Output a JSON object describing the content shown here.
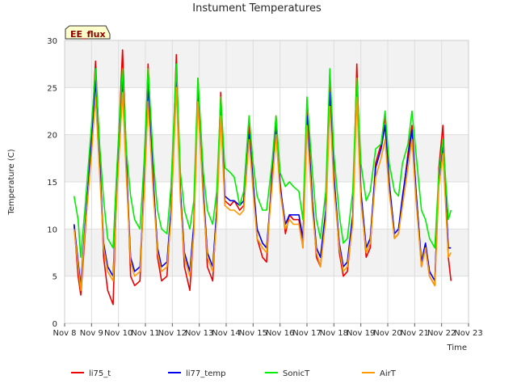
{
  "chart_data": {
    "type": "line",
    "title": "Instument Temperatures",
    "xlabel": "Time",
    "ylabel": "Temperature (C)",
    "badge": "EE_flux",
    "ylim": [
      0,
      30
    ],
    "yticks": [
      0,
      5,
      10,
      15,
      20,
      25,
      30
    ],
    "xlim": [
      8,
      23
    ],
    "xticks": [
      {
        "x": 8,
        "label": "Nov 8"
      },
      {
        "x": 9,
        "label": "Nov 9"
      },
      {
        "x": 10,
        "label": "Nov 10"
      },
      {
        "x": 11,
        "label": "Nov 11"
      },
      {
        "x": 12,
        "label": "Nov 12"
      },
      {
        "x": 13,
        "label": "Nov 13"
      },
      {
        "x": 14,
        "label": "Nov 14"
      },
      {
        "x": 15,
        "label": "Nov 15"
      },
      {
        "x": 16,
        "label": "Nov 16"
      },
      {
        "x": 17,
        "label": "Nov 17"
      },
      {
        "x": 18,
        "label": "Nov 18"
      },
      {
        "x": 19,
        "label": "Nov 19"
      },
      {
        "x": 20,
        "label": "Nov 20"
      },
      {
        "x": 21,
        "label": "Nov 21"
      },
      {
        "x": 22,
        "label": "Nov 22"
      },
      {
        "x": 23,
        "label": "Nov 23"
      }
    ],
    "grid": true,
    "legend_position": "bottom",
    "series": [
      {
        "name": "li75_t",
        "color": "#ee0000",
        "x": [
          8.35,
          8.5,
          8.6,
          8.75,
          9.0,
          9.15,
          9.3,
          9.45,
          9.6,
          9.8,
          9.95,
          10.15,
          10.3,
          10.45,
          10.6,
          10.8,
          10.95,
          11.1,
          11.3,
          11.45,
          11.6,
          11.8,
          11.95,
          12.15,
          12.3,
          12.45,
          12.65,
          12.8,
          12.95,
          13.15,
          13.3,
          13.5,
          13.65,
          13.8,
          13.95,
          14.15,
          14.3,
          14.5,
          14.65,
          14.85,
          15.0,
          15.15,
          15.35,
          15.5,
          15.7,
          15.85,
          16.0,
          16.2,
          16.35,
          16.5,
          16.7,
          16.85,
          17.0,
          17.2,
          17.35,
          17.5,
          17.7,
          17.85,
          18.0,
          18.2,
          18.35,
          18.5,
          18.7,
          18.85,
          19.0,
          19.2,
          19.35,
          19.55,
          19.75,
          19.9,
          20.05,
          20.25,
          20.4,
          20.55,
          20.75,
          20.9,
          21.05,
          21.25,
          21.4,
          21.55,
          21.75,
          21.9,
          22.05,
          22.25,
          22.35
        ],
        "y": [
          10.5,
          5.0,
          3.0,
          9.0,
          20.0,
          27.8,
          18.0,
          7.0,
          3.5,
          2.0,
          16.0,
          29.0,
          17.0,
          5.0,
          4.0,
          4.5,
          15.0,
          27.5,
          15.0,
          7.0,
          4.5,
          5.0,
          12.0,
          28.5,
          14.0,
          6.0,
          3.5,
          10.0,
          26.0,
          14.0,
          6.0,
          4.5,
          12.0,
          24.5,
          13.0,
          12.5,
          13.0,
          12.0,
          12.5,
          21.0,
          15.0,
          9.0,
          7.0,
          6.5,
          16.0,
          22.0,
          15.0,
          9.5,
          11.5,
          11.0,
          11.0,
          8.0,
          23.0,
          13.0,
          7.0,
          6.0,
          12.0,
          26.5,
          16.0,
          7.5,
          5.0,
          5.5,
          11.0,
          27.5,
          14.0,
          7.0,
          8.0,
          17.0,
          19.0,
          22.0,
          15.0,
          9.0,
          9.5,
          13.0,
          18.0,
          21.0,
          14.0,
          6.0,
          8.0,
          5.0,
          4.0,
          16.5,
          21.0,
          7.0,
          4.5
        ]
      },
      {
        "name": "li77_temp",
        "color": "#0000ee",
        "x": [
          8.35,
          8.5,
          8.6,
          8.75,
          9.0,
          9.15,
          9.3,
          9.45,
          9.6,
          9.8,
          9.95,
          10.15,
          10.3,
          10.45,
          10.6,
          10.8,
          10.95,
          11.1,
          11.3,
          11.45,
          11.6,
          11.8,
          11.95,
          12.15,
          12.3,
          12.45,
          12.65,
          12.8,
          12.95,
          13.15,
          13.3,
          13.5,
          13.65,
          13.8,
          13.95,
          14.15,
          14.3,
          14.5,
          14.65,
          14.85,
          15.0,
          15.15,
          15.35,
          15.5,
          15.7,
          15.85,
          16.0,
          16.2,
          16.35,
          16.5,
          16.7,
          16.85,
          17.0,
          17.2,
          17.35,
          17.5,
          17.7,
          17.85,
          18.0,
          18.2,
          18.35,
          18.5,
          18.7,
          18.85,
          19.0,
          19.2,
          19.35,
          19.55,
          19.75,
          19.9,
          20.05,
          20.25,
          20.4,
          20.55,
          20.75,
          20.9,
          21.05,
          21.25,
          21.4,
          21.55,
          21.75,
          21.9,
          22.05,
          22.25,
          22.35
        ],
        "y": [
          10.5,
          6.5,
          4.0,
          10.0,
          19.0,
          26.0,
          17.0,
          8.5,
          6.0,
          5.0,
          15.0,
          26.0,
          16.0,
          7.0,
          5.5,
          6.0,
          14.0,
          25.5,
          14.5,
          8.0,
          6.0,
          6.5,
          12.0,
          27.0,
          14.0,
          7.5,
          5.5,
          10.5,
          24.5,
          14.0,
          7.5,
          6.0,
          12.0,
          23.0,
          13.5,
          13.0,
          13.0,
          12.5,
          13.0,
          20.0,
          15.0,
          10.0,
          8.5,
          8.0,
          15.0,
          21.0,
          14.5,
          10.5,
          11.5,
          11.5,
          11.5,
          9.0,
          22.0,
          13.0,
          8.0,
          7.0,
          12.0,
          24.5,
          15.5,
          8.5,
          6.0,
          6.5,
          11.5,
          25.0,
          14.0,
          8.0,
          9.0,
          16.5,
          18.5,
          21.0,
          15.0,
          9.5,
          10.0,
          13.5,
          17.5,
          20.5,
          14.0,
          6.5,
          8.5,
          5.5,
          4.5,
          15.5,
          19.0,
          8.0,
          8.0
        ]
      },
      {
        "name": "SonicT",
        "color": "#00ee00",
        "x": [
          8.35,
          8.5,
          8.6,
          8.75,
          9.0,
          9.15,
          9.3,
          9.45,
          9.6,
          9.8,
          9.95,
          10.15,
          10.3,
          10.45,
          10.6,
          10.8,
          10.95,
          11.1,
          11.3,
          11.45,
          11.6,
          11.8,
          11.95,
          12.15,
          12.3,
          12.45,
          12.65,
          12.8,
          12.95,
          13.15,
          13.3,
          13.5,
          13.65,
          13.8,
          13.95,
          14.15,
          14.3,
          14.5,
          14.65,
          14.85,
          15.0,
          15.15,
          15.35,
          15.5,
          15.7,
          15.85,
          16.0,
          16.2,
          16.35,
          16.5,
          16.7,
          16.85,
          17.0,
          17.2,
          17.35,
          17.5,
          17.7,
          17.85,
          18.0,
          18.2,
          18.35,
          18.5,
          18.7,
          18.85,
          19.0,
          19.2,
          19.35,
          19.55,
          19.75,
          19.9,
          20.05,
          20.25,
          20.4,
          20.55,
          20.75,
          20.9,
          21.05,
          21.25,
          21.4,
          21.55,
          21.75,
          21.9,
          22.05,
          22.25,
          22.35
        ],
        "y": [
          13.5,
          11.0,
          7.0,
          12.0,
          21.0,
          27.0,
          19.0,
          13.0,
          9.0,
          8.0,
          17.0,
          27.0,
          18.0,
          13.5,
          11.0,
          10.0,
          17.0,
          27.0,
          17.0,
          12.0,
          10.0,
          9.5,
          14.5,
          27.5,
          16.0,
          12.0,
          10.0,
          13.0,
          26.0,
          16.0,
          12.0,
          10.5,
          14.0,
          24.0,
          16.5,
          16.0,
          15.5,
          12.5,
          14.0,
          22.0,
          17.0,
          13.5,
          12.0,
          12.0,
          17.0,
          22.0,
          16.0,
          14.5,
          15.0,
          14.5,
          14.0,
          11.0,
          24.0,
          16.0,
          11.0,
          9.0,
          14.0,
          27.0,
          18.0,
          11.5,
          8.5,
          9.0,
          14.0,
          26.0,
          17.0,
          13.0,
          14.0,
          18.5,
          19.0,
          22.5,
          17.0,
          14.0,
          13.5,
          17.0,
          19.0,
          22.5,
          18.0,
          12.0,
          11.0,
          9.0,
          8.0,
          16.0,
          19.5,
          11.0,
          12.0
        ]
      },
      {
        "name": "AirT",
        "color": "#ff9900",
        "x": [
          8.35,
          8.5,
          8.6,
          8.75,
          9.0,
          9.15,
          9.3,
          9.45,
          9.6,
          9.8,
          9.95,
          10.15,
          10.3,
          10.45,
          10.6,
          10.8,
          10.95,
          11.1,
          11.3,
          11.45,
          11.6,
          11.8,
          11.95,
          12.15,
          12.3,
          12.45,
          12.65,
          12.8,
          12.95,
          13.15,
          13.3,
          13.5,
          13.65,
          13.8,
          13.95,
          14.15,
          14.3,
          14.5,
          14.65,
          14.85,
          15.0,
          15.15,
          15.35,
          15.5,
          15.7,
          15.85,
          16.0,
          16.2,
          16.35,
          16.5,
          16.7,
          16.85,
          17.0,
          17.2,
          17.35,
          17.5,
          17.7,
          17.85,
          18.0,
          18.2,
          18.35,
          18.5,
          18.7,
          18.85,
          19.0,
          19.2,
          19.35,
          19.55,
          19.75,
          19.9,
          20.05,
          20.25,
          20.4,
          20.55,
          20.75,
          20.9,
          21.05,
          21.25,
          21.4,
          21.55,
          21.75,
          21.9,
          22.05,
          22.25,
          22.35
        ],
        "y": [
          10.0,
          6.0,
          3.5,
          9.5,
          18.0,
          24.0,
          16.0,
          8.0,
          5.5,
          4.5,
          14.0,
          24.5,
          15.0,
          6.5,
          5.0,
          5.5,
          13.5,
          23.5,
          13.5,
          7.5,
          5.5,
          6.0,
          11.0,
          25.0,
          13.0,
          7.0,
          5.0,
          9.5,
          23.5,
          13.0,
          7.0,
          5.5,
          11.0,
          22.0,
          12.5,
          12.0,
          12.0,
          11.5,
          12.0,
          19.5,
          14.0,
          9.0,
          8.0,
          7.5,
          14.5,
          20.0,
          14.0,
          10.0,
          11.0,
          10.5,
          10.5,
          8.0,
          21.0,
          12.0,
          7.5,
          6.0,
          11.0,
          23.0,
          14.5,
          8.0,
          5.5,
          6.0,
          10.5,
          24.0,
          13.0,
          7.5,
          8.5,
          15.5,
          17.5,
          19.5,
          14.0,
          9.0,
          9.5,
          12.5,
          16.5,
          19.5,
          13.0,
          6.0,
          8.0,
          5.0,
          4.0,
          14.5,
          18.0,
          7.0,
          7.5
        ]
      }
    ]
  }
}
